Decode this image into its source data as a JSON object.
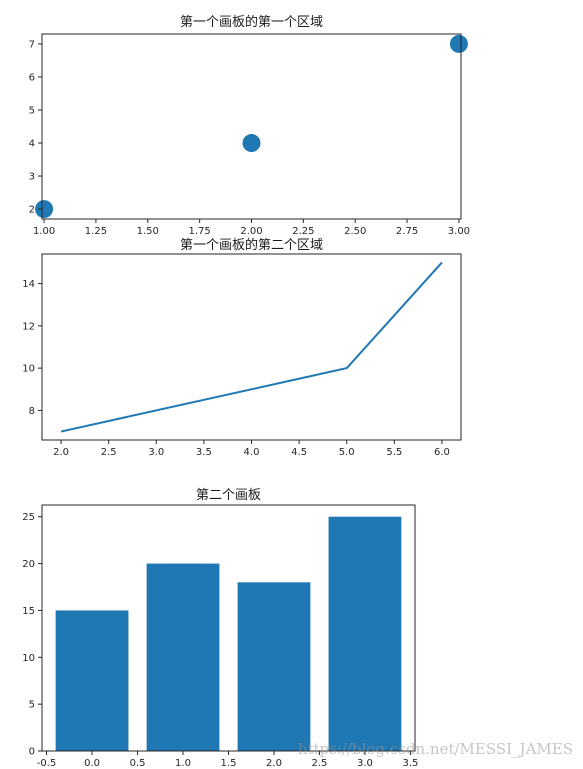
{
  "colors": {
    "series": "#1f77b4",
    "watermark": "#999999"
  },
  "watermark": "https://blog.csdn.net/MESSI_JAMES",
  "chart_data": [
    {
      "type": "scatter",
      "title": "第一个画板的第一个区域",
      "x": [
        1,
        2,
        3
      ],
      "y": [
        2,
        4,
        7
      ],
      "xlim": [
        0.99,
        3.01
      ],
      "ylim": [
        1.7,
        7.3
      ],
      "xticks": [
        1.0,
        1.25,
        1.5,
        1.75,
        2.0,
        2.25,
        2.5,
        2.75,
        3.0
      ],
      "xtick_labels": [
        "1.00",
        "1.25",
        "1.50",
        "1.75",
        "2.00",
        "2.25",
        "2.50",
        "2.75",
        "3.00"
      ],
      "yticks": [
        2,
        3,
        4,
        5,
        6,
        7
      ],
      "ytick_labels": [
        "2",
        "3",
        "4",
        "5",
        "6",
        "7"
      ],
      "grid": false
    },
    {
      "type": "line",
      "title": "第一个画板的第二个区域",
      "x": [
        2,
        5,
        6
      ],
      "y": [
        7,
        10,
        15
      ],
      "xlim": [
        1.8,
        6.2
      ],
      "ylim": [
        6.6,
        15.4
      ],
      "xticks": [
        2.0,
        2.5,
        3.0,
        3.5,
        4.0,
        4.5,
        5.0,
        5.5,
        6.0
      ],
      "xtick_labels": [
        "2.0",
        "2.5",
        "3.0",
        "3.5",
        "4.0",
        "4.5",
        "5.0",
        "5.5",
        "6.0"
      ],
      "yticks": [
        8,
        10,
        12,
        14
      ],
      "ytick_labels": [
        "8",
        "10",
        "12",
        "14"
      ],
      "grid": false
    },
    {
      "type": "bar",
      "title": "第二个画板",
      "x": [
        0,
        1,
        2,
        3
      ],
      "values": [
        15,
        20,
        18,
        25
      ],
      "bar_width": 0.8,
      "xlim": [
        -0.55,
        3.55
      ],
      "ylim": [
        0,
        26.25
      ],
      "xticks": [
        -0.5,
        0.0,
        0.5,
        1.0,
        1.5,
        2.0,
        2.5,
        3.0,
        3.5
      ],
      "xtick_labels": [
        "-0.5",
        "0.0",
        "0.5",
        "1.0",
        "1.5",
        "2.0",
        "2.5",
        "3.0",
        "3.5"
      ],
      "yticks": [
        0,
        5,
        10,
        15,
        20,
        25
      ],
      "ytick_labels": [
        "0",
        "5",
        "10",
        "15",
        "20",
        "25"
      ],
      "grid": false
    }
  ]
}
